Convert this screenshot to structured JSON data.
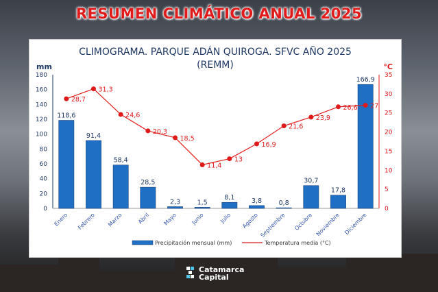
{
  "banner": {
    "title": "RESUMEN CLIMÁTICO ANUAL 2025"
  },
  "logo": {
    "line1": "Catamarca",
    "line2": "Capital"
  },
  "colors": {
    "banner": "#e11b1b",
    "bar": "#1f6fc5",
    "line": "#e01a1a",
    "title": "#1f3864"
  },
  "chart_data": {
    "type": "bar",
    "title": "CLIMOGRAMA. PARQUE ADÁN QUIROGA. SFVC AÑO 2025",
    "subtitle": "(REMM)",
    "categories": [
      "Enero",
      "Febrero",
      "Marzo",
      "Abril",
      "Mayo",
      "Junio",
      "Julio",
      "Agosto",
      "Septiembre",
      "Octubre",
      "Noviembre",
      "Diciembre"
    ],
    "series": [
      {
        "name": "Precipitación mensual (mm)",
        "type": "bar",
        "axis": "left",
        "values": [
          118.6,
          91.4,
          58.4,
          28.5,
          2.3,
          1.5,
          8.1,
          3.8,
          0.8,
          30.7,
          17.8,
          166.9
        ],
        "labels": [
          "118,6",
          "91,4",
          "58,4",
          "28,5",
          "2,3",
          "1,5",
          "8,1",
          "3,8",
          "0,8",
          "30,7",
          "17,8",
          "166,9"
        ]
      },
      {
        "name": "Temperatura media (°C)",
        "type": "line",
        "axis": "right",
        "values": [
          28.7,
          31.3,
          24.6,
          20.3,
          18.5,
          11.4,
          13,
          16.9,
          21.6,
          23.9,
          26.6,
          27
        ],
        "labels": [
          "28,7",
          "31,3",
          "24,6",
          "20,3",
          "18,5",
          "11,4",
          "13",
          "16,9",
          "21,6",
          "23,9",
          "26,6",
          "27"
        ]
      }
    ],
    "y_left": {
      "unit": "mm",
      "range": [
        0,
        180
      ],
      "ticks": [
        0,
        20,
        40,
        60,
        80,
        100,
        120,
        140,
        160,
        180
      ]
    },
    "y_right": {
      "unit": "°C",
      "range": [
        0,
        35
      ],
      "ticks": [
        0,
        5,
        10,
        15,
        20,
        25,
        30,
        35
      ]
    },
    "grid": false,
    "legend": "bottom"
  }
}
